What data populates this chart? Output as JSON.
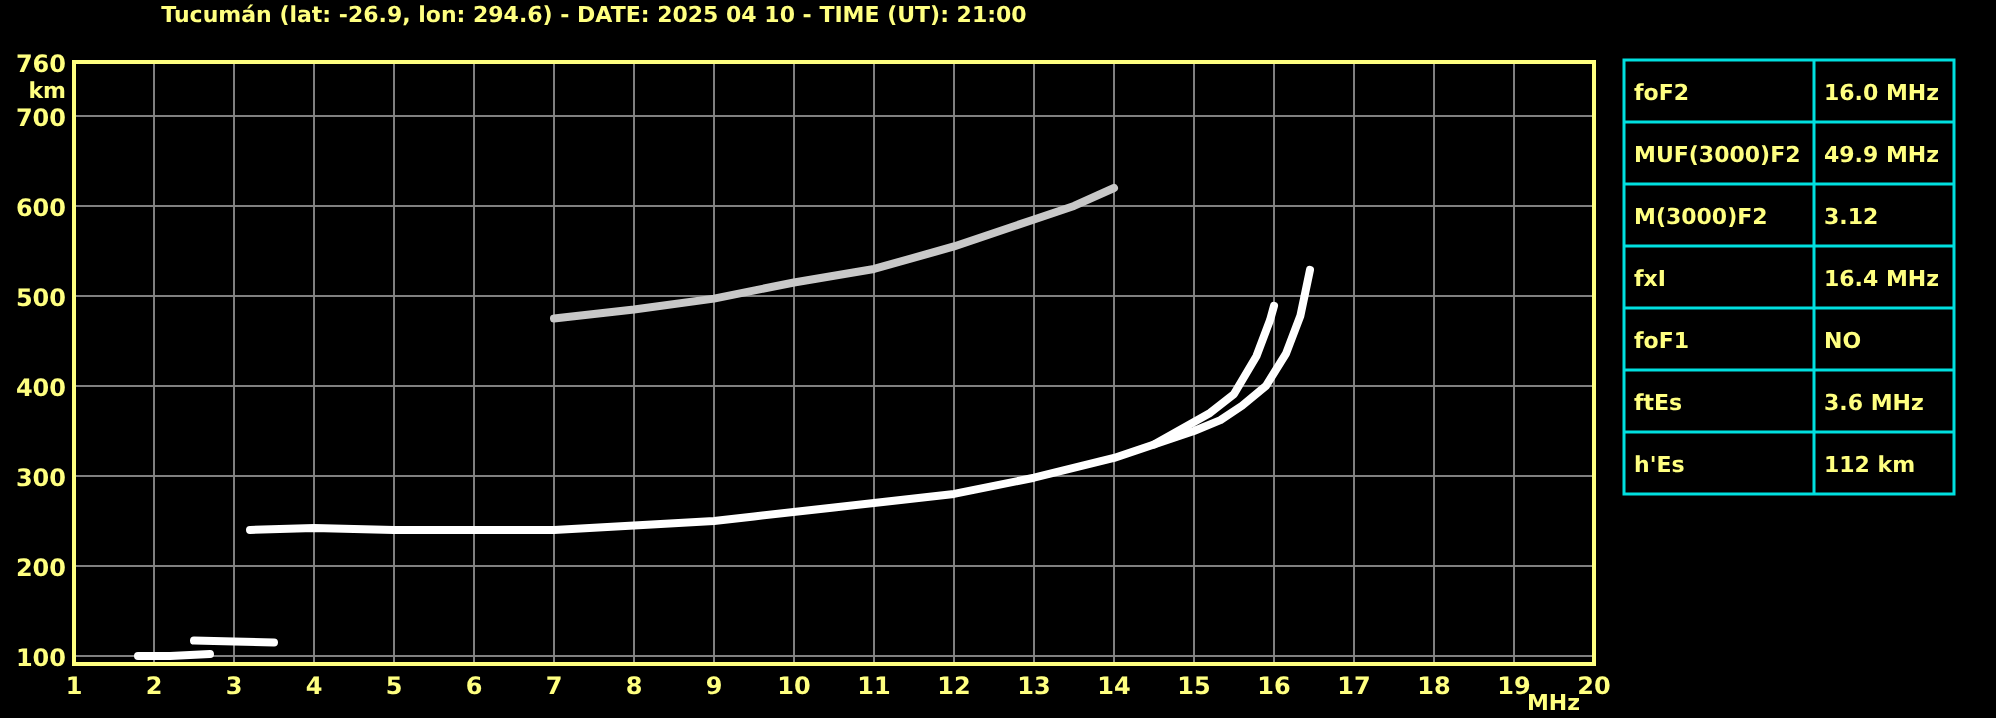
{
  "chart_data": [
    {
      "type": "line",
      "title": "Tucumán (lat: -26.9, lon: 294.6) - DATE: 2025 04 10 - TIME (UT): 21:00",
      "xlabel": "MHz",
      "ylabel": "km",
      "xlim": [
        1,
        20
      ],
      "ylim": [
        91,
        760
      ],
      "xticks": [
        1,
        2,
        3,
        4,
        5,
        6,
        7,
        8,
        9,
        10,
        11,
        12,
        13,
        14,
        15,
        16,
        17,
        18,
        19,
        20
      ],
      "yticks": [
        100,
        200,
        300,
        400,
        500,
        600,
        700,
        760
      ],
      "grid": true,
      "marker": "none",
      "line_style": "solid",
      "series": [
        {
          "color": "#ffffff",
          "x": [
            3.2,
            4,
            5,
            6,
            7,
            8,
            9,
            9.5,
            10.5,
            11,
            12,
            13,
            14,
            14.5,
            14.9,
            15.2,
            15.5,
            15.78,
            15.95,
            16.0
          ],
          "values": [
            240,
            242,
            240,
            240,
            240,
            245,
            250,
            255,
            265,
            270,
            280,
            298,
            320,
            335,
            355,
            370,
            391,
            433,
            473,
            489
          ]
        },
        {
          "color": "#ffffff",
          "x": [
            14.5,
            15.0,
            15.33,
            15.6,
            15.9,
            16.15,
            16.33,
            16.45
          ],
          "values": [
            335,
            350,
            362,
            378,
            400,
            436,
            478,
            529
          ]
        },
        {
          "color": "#ffffff",
          "x": [
            1.8,
            2.2,
            2.7
          ],
          "values": [
            100,
            100,
            102
          ]
        },
        {
          "color": "#ffffff",
          "x": [
            2.5,
            3.0,
            3.5
          ],
          "values": [
            117,
            116,
            115
          ]
        },
        {
          "color": "#c8c8c8",
          "x": [
            7.0,
            8,
            9,
            10,
            11,
            12,
            13,
            13.5,
            14
          ],
          "values": [
            475,
            485,
            497,
            515,
            530,
            555,
            585,
            600,
            620
          ]
        }
      ]
    },
    {
      "type": "other",
      "annotations": [
        "foF2",
        "16.0 MHz",
        "MUF(3000)F2",
        "49.9 MHz",
        "M(3000)F2",
        "3.12",
        "fxI",
        "16.4 MHz",
        "foF1",
        "NO",
        "ftEs",
        "3.6 MHz",
        "h'Es",
        "112 km"
      ]
    }
  ]
}
